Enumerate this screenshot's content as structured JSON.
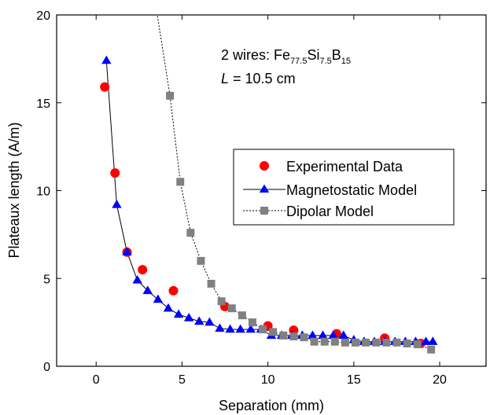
{
  "chart_data": {
    "type": "scatter",
    "xlabel": "Separation (mm)",
    "ylabel": "Plateaux length (A/m)",
    "xlim": [
      -2.3,
      22.7
    ],
    "ylim": [
      0,
      20
    ],
    "xticks": [
      0,
      5,
      10,
      15,
      20
    ],
    "yticks": [
      0,
      5,
      10,
      15,
      20
    ],
    "annotation": {
      "line1_prefix": "2 wires: Fe",
      "sub1": "77.5",
      "si": "Si",
      "sub2": "7.5",
      "b": "B",
      "sub3": "15",
      "line2_italic": "L",
      "line2_rest": " = 10.5 cm"
    },
    "legend": {
      "position": "center-right",
      "entries": [
        "Experimental Data",
        "Magnetostatic Model",
        "Dipolar Model"
      ]
    },
    "colors": {
      "experimental": "#ff0000",
      "magnetostatic": "#0000ff",
      "dipolar": "#808080",
      "line": "#000000"
    },
    "series": [
      {
        "name": "Experimental Data",
        "marker": "circle",
        "line": "none",
        "points": [
          [
            0.5,
            15.9
          ],
          [
            1.1,
            11.0
          ],
          [
            1.8,
            6.5
          ],
          [
            2.7,
            5.5
          ],
          [
            4.5,
            4.3
          ],
          [
            7.5,
            3.4
          ],
          [
            10.0,
            2.3
          ],
          [
            11.5,
            2.05
          ],
          [
            14.0,
            1.85
          ],
          [
            16.8,
            1.6
          ],
          [
            18.9,
            1.3
          ]
        ]
      },
      {
        "name": "Magnetostatic Model",
        "marker": "triangle",
        "line": "solid",
        "points": [
          [
            0.6,
            17.4
          ],
          [
            1.2,
            9.2
          ],
          [
            1.8,
            6.5
          ],
          [
            2.4,
            4.9
          ],
          [
            3.0,
            4.3
          ],
          [
            3.6,
            3.8
          ],
          [
            4.2,
            3.3
          ],
          [
            4.8,
            2.95
          ],
          [
            5.4,
            2.75
          ],
          [
            6.0,
            2.55
          ],
          [
            6.6,
            2.5
          ],
          [
            7.2,
            2.15
          ],
          [
            7.8,
            2.1
          ],
          [
            8.4,
            2.1
          ],
          [
            9.0,
            2.1
          ],
          [
            9.6,
            2.1
          ],
          [
            10.2,
            1.75
          ],
          [
            10.8,
            1.75
          ],
          [
            11.4,
            1.75
          ],
          [
            12.0,
            1.75
          ],
          [
            12.6,
            1.75
          ],
          [
            13.2,
            1.75
          ],
          [
            13.8,
            1.75
          ],
          [
            14.4,
            1.75
          ],
          [
            15.0,
            1.5
          ],
          [
            15.6,
            1.4
          ],
          [
            16.2,
            1.4
          ],
          [
            16.8,
            1.4
          ],
          [
            17.4,
            1.4
          ],
          [
            18.0,
            1.4
          ],
          [
            18.6,
            1.4
          ],
          [
            19.2,
            1.4
          ],
          [
            19.6,
            1.4
          ]
        ]
      },
      {
        "name": "Dipolar Model",
        "marker": "square",
        "line": "dotted",
        "curve_start": [
          3.4,
          21.0
        ],
        "points": [
          [
            4.3,
            15.4
          ],
          [
            4.9,
            10.5
          ],
          [
            5.5,
            7.6
          ],
          [
            6.1,
            6.0
          ],
          [
            6.7,
            4.7
          ],
          [
            7.3,
            3.7
          ],
          [
            7.9,
            3.3
          ],
          [
            8.5,
            2.9
          ],
          [
            9.1,
            2.5
          ],
          [
            9.7,
            2.1
          ],
          [
            10.3,
            1.95
          ],
          [
            10.9,
            1.75
          ],
          [
            11.5,
            1.7
          ],
          [
            12.1,
            1.65
          ],
          [
            12.7,
            1.4
          ],
          [
            13.3,
            1.4
          ],
          [
            13.9,
            1.4
          ],
          [
            14.5,
            1.35
          ],
          [
            15.1,
            1.35
          ],
          [
            15.7,
            1.35
          ],
          [
            16.3,
            1.35
          ],
          [
            16.9,
            1.35
          ],
          [
            17.5,
            1.35
          ],
          [
            18.1,
            1.3
          ],
          [
            18.7,
            1.25
          ],
          [
            19.5,
            0.95
          ]
        ]
      }
    ]
  }
}
